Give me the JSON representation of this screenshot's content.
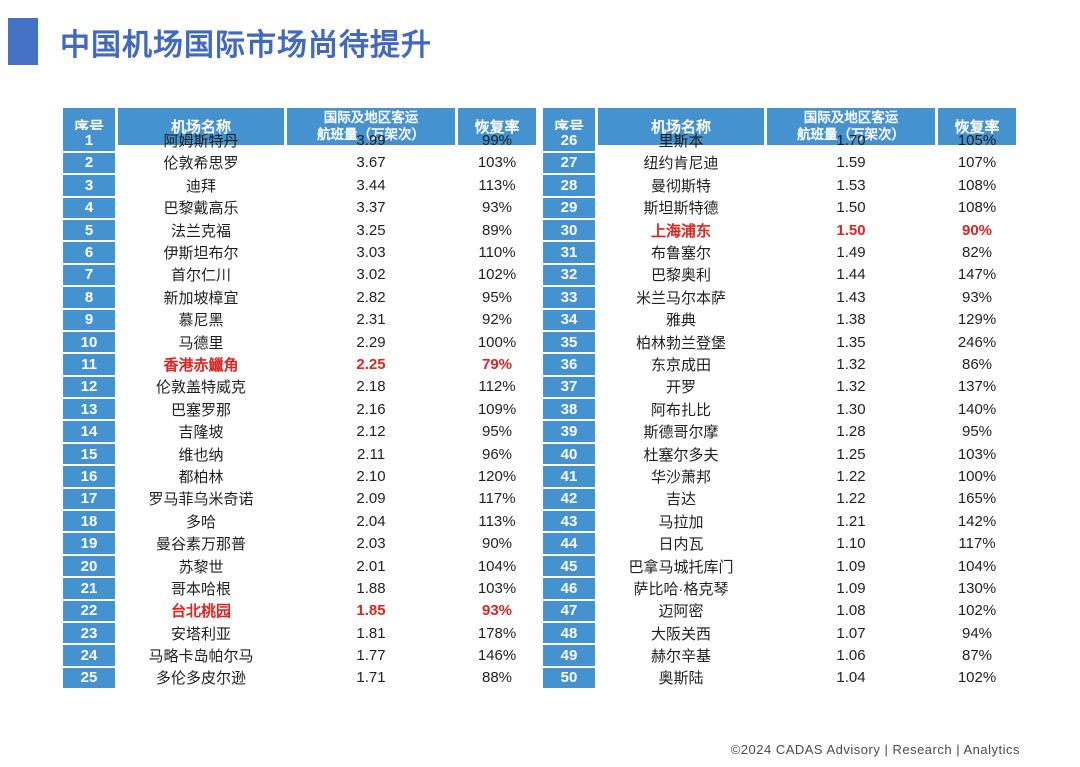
{
  "title": "中国机场国际市场尚待提升",
  "footer": "©2024 CADAS Advisory | Research | Analytics",
  "colors": {
    "accent_blue": "#4472c4",
    "header_bg": "#4492cf",
    "row_odd": "#cfd9e8",
    "row_even": "#eaedf4",
    "highlight_red": "#e02420"
  },
  "columns": [
    "序号",
    "机场名称",
    "国际及地区客运\n航班量（万架次）",
    "恢复率"
  ],
  "chart_data": {
    "type": "table",
    "title": "中国机场国际市场尚待提升",
    "columns": [
      "序号",
      "机场名称",
      "国际及地区客运航班量（万架次）",
      "恢复率"
    ],
    "highlighted_airports": [
      "香港赤鱲角",
      "台北桃园",
      "上海浦东"
    ]
  },
  "tables": [
    {
      "rows": [
        {
          "no": "1",
          "name": "阿姆斯特丹",
          "volume": "3.99",
          "recovery": "99%",
          "highlight": false
        },
        {
          "no": "2",
          "name": "伦敦希思罗",
          "volume": "3.67",
          "recovery": "103%",
          "highlight": false
        },
        {
          "no": "3",
          "name": "迪拜",
          "volume": "3.44",
          "recovery": "113%",
          "highlight": false
        },
        {
          "no": "4",
          "name": "巴黎戴高乐",
          "volume": "3.37",
          "recovery": "93%",
          "highlight": false
        },
        {
          "no": "5",
          "name": "法兰克福",
          "volume": "3.25",
          "recovery": "89%",
          "highlight": false
        },
        {
          "no": "6",
          "name": "伊斯坦布尔",
          "volume": "3.03",
          "recovery": "110%",
          "highlight": false
        },
        {
          "no": "7",
          "name": "首尔仁川",
          "volume": "3.02",
          "recovery": "102%",
          "highlight": false
        },
        {
          "no": "8",
          "name": "新加坡樟宜",
          "volume": "2.82",
          "recovery": "95%",
          "highlight": false
        },
        {
          "no": "9",
          "name": "慕尼黑",
          "volume": "2.31",
          "recovery": "92%",
          "highlight": false
        },
        {
          "no": "10",
          "name": "马德里",
          "volume": "2.29",
          "recovery": "100%",
          "highlight": false
        },
        {
          "no": "11",
          "name": "香港赤鱲角",
          "volume": "2.25",
          "recovery": "79%",
          "highlight": true
        },
        {
          "no": "12",
          "name": "伦敦盖特威克",
          "volume": "2.18",
          "recovery": "112%",
          "highlight": false
        },
        {
          "no": "13",
          "name": "巴塞罗那",
          "volume": "2.16",
          "recovery": "109%",
          "highlight": false
        },
        {
          "no": "14",
          "name": "吉隆坡",
          "volume": "2.12",
          "recovery": "95%",
          "highlight": false
        },
        {
          "no": "15",
          "name": "维也纳",
          "volume": "2.11",
          "recovery": "96%",
          "highlight": false
        },
        {
          "no": "16",
          "name": "都柏林",
          "volume": "2.10",
          "recovery": "120%",
          "highlight": false
        },
        {
          "no": "17",
          "name": "罗马菲乌米奇诺",
          "volume": "2.09",
          "recovery": "117%",
          "highlight": false
        },
        {
          "no": "18",
          "name": "多哈",
          "volume": "2.04",
          "recovery": "113%",
          "highlight": false
        },
        {
          "no": "19",
          "name": "曼谷素万那普",
          "volume": "2.03",
          "recovery": "90%",
          "highlight": false
        },
        {
          "no": "20",
          "name": "苏黎世",
          "volume": "2.01",
          "recovery": "104%",
          "highlight": false
        },
        {
          "no": "21",
          "name": "哥本哈根",
          "volume": "1.88",
          "recovery": "103%",
          "highlight": false
        },
        {
          "no": "22",
          "name": "台北桃园",
          "volume": "1.85",
          "recovery": "93%",
          "highlight": true
        },
        {
          "no": "23",
          "name": "安塔利亚",
          "volume": "1.81",
          "recovery": "178%",
          "highlight": false
        },
        {
          "no": "24",
          "name": "马略卡岛帕尔马",
          "volume": "1.77",
          "recovery": "146%",
          "highlight": false
        },
        {
          "no": "25",
          "name": "多伦多皮尔逊",
          "volume": "1.71",
          "recovery": "88%",
          "highlight": false
        }
      ]
    },
    {
      "rows": [
        {
          "no": "26",
          "name": "里斯本",
          "volume": "1.70",
          "recovery": "105%",
          "highlight": false
        },
        {
          "no": "27",
          "name": "纽约肯尼迪",
          "volume": "1.59",
          "recovery": "107%",
          "highlight": false
        },
        {
          "no": "28",
          "name": "曼彻斯特",
          "volume": "1.53",
          "recovery": "108%",
          "highlight": false
        },
        {
          "no": "29",
          "name": "斯坦斯特德",
          "volume": "1.50",
          "recovery": "108%",
          "highlight": false
        },
        {
          "no": "30",
          "name": "上海浦东",
          "volume": "1.50",
          "recovery": "90%",
          "highlight": true
        },
        {
          "no": "31",
          "name": "布鲁塞尔",
          "volume": "1.49",
          "recovery": "82%",
          "highlight": false
        },
        {
          "no": "32",
          "name": "巴黎奥利",
          "volume": "1.44",
          "recovery": "147%",
          "highlight": false
        },
        {
          "no": "33",
          "name": "米兰马尔本萨",
          "volume": "1.43",
          "recovery": "93%",
          "highlight": false
        },
        {
          "no": "34",
          "name": "雅典",
          "volume": "1.38",
          "recovery": "129%",
          "highlight": false
        },
        {
          "no": "35",
          "name": "柏林勃兰登堡",
          "volume": "1.35",
          "recovery": "246%",
          "highlight": false
        },
        {
          "no": "36",
          "name": "东京成田",
          "volume": "1.32",
          "recovery": "86%",
          "highlight": false
        },
        {
          "no": "37",
          "name": "开罗",
          "volume": "1.32",
          "recovery": "137%",
          "highlight": false
        },
        {
          "no": "38",
          "name": "阿布扎比",
          "volume": "1.30",
          "recovery": "140%",
          "highlight": false
        },
        {
          "no": "39",
          "name": "斯德哥尔摩",
          "volume": "1.28",
          "recovery": "95%",
          "highlight": false
        },
        {
          "no": "40",
          "name": "杜塞尔多夫",
          "volume": "1.25",
          "recovery": "103%",
          "highlight": false
        },
        {
          "no": "41",
          "name": "华沙萧邦",
          "volume": "1.22",
          "recovery": "100%",
          "highlight": false
        },
        {
          "no": "42",
          "name": "吉达",
          "volume": "1.22",
          "recovery": "165%",
          "highlight": false
        },
        {
          "no": "43",
          "name": "马拉加",
          "volume": "1.21",
          "recovery": "142%",
          "highlight": false
        },
        {
          "no": "44",
          "name": "日内瓦",
          "volume": "1.10",
          "recovery": "117%",
          "highlight": false
        },
        {
          "no": "45",
          "name": "巴拿马城托库门",
          "volume": "1.09",
          "recovery": "104%",
          "highlight": false
        },
        {
          "no": "46",
          "name": "萨比哈·格克琴",
          "volume": "1.09",
          "recovery": "130%",
          "highlight": false
        },
        {
          "no": "47",
          "name": "迈阿密",
          "volume": "1.08",
          "recovery": "102%",
          "highlight": false
        },
        {
          "no": "48",
          "name": "大阪关西",
          "volume": "1.07",
          "recovery": "94%",
          "highlight": false
        },
        {
          "no": "49",
          "name": "赫尔辛基",
          "volume": "1.06",
          "recovery": "87%",
          "highlight": false
        },
        {
          "no": "50",
          "name": "奥斯陆",
          "volume": "1.04",
          "recovery": "102%",
          "highlight": false
        }
      ]
    }
  ]
}
